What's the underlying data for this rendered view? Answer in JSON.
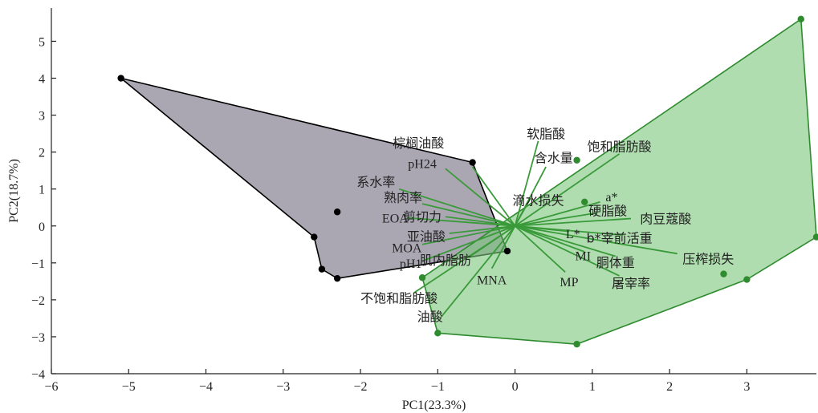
{
  "chart_data": {
    "type": "scatter",
    "title": "",
    "xlabel": "PC1(23.3%)",
    "ylabel": "PC2(18.7%)",
    "xlim": [
      -6,
      3.9
    ],
    "ylim": [
      -4,
      5.9
    ],
    "xticks": [
      -6,
      -5,
      -4,
      -3,
      -2,
      -1,
      0,
      1,
      2,
      3
    ],
    "yticks": [
      -4,
      -3,
      -2,
      -1,
      0,
      1,
      2,
      3,
      4,
      5
    ],
    "xtick_labels": [
      "−6",
      "−5",
      "−4",
      "−3",
      "−2",
      "−1",
      "0",
      "1",
      "2",
      "3"
    ],
    "ytick_labels": [
      "−4",
      "−3",
      "−2",
      "−1",
      "0",
      "1",
      "2",
      "3",
      "4",
      "5"
    ],
    "grid": false,
    "groups": [
      {
        "color": "#000000",
        "fill": "#8e8a99",
        "points": [
          [
            -5.1,
            4.0
          ],
          [
            -0.55,
            1.72
          ],
          [
            -0.1,
            -0.68
          ],
          [
            -2.3,
            -1.42
          ],
          [
            -2.5,
            -1.17
          ],
          [
            -2.6,
            -0.3
          ],
          [
            -2.3,
            0.38
          ]
        ],
        "hull": [
          [
            -5.1,
            4.0
          ],
          [
            -0.55,
            1.72
          ],
          [
            -0.1,
            -0.68
          ],
          [
            -2.3,
            -1.42
          ],
          [
            -2.5,
            -1.17
          ],
          [
            -2.6,
            -0.3
          ]
        ]
      },
      {
        "color": "#2e8b2e",
        "fill": "#7cc67c",
        "points": [
          [
            3.7,
            5.6
          ],
          [
            3.9,
            -0.3
          ],
          [
            3.0,
            -1.45
          ],
          [
            2.7,
            -1.3
          ],
          [
            0.8,
            -3.2
          ],
          [
            -1.0,
            -2.9
          ],
          [
            -1.2,
            -1.4
          ],
          [
            0.9,
            0.65
          ],
          [
            0.8,
            1.78
          ]
        ],
        "hull": [
          [
            3.7,
            5.6
          ],
          [
            3.9,
            -0.3
          ],
          [
            3.0,
            -1.45
          ],
          [
            0.8,
            -3.2
          ],
          [
            -1.0,
            -2.9
          ],
          [
            -1.2,
            -1.4
          ]
        ]
      }
    ],
    "loadings": [
      {
        "label": "棕榈油酸",
        "x": -0.55,
        "y": 1.6,
        "lx": -1.25,
        "ly": 2.25
      },
      {
        "label": "pH24",
        "x": -0.9,
        "y": 1.55,
        "lx": -1.2,
        "ly": 1.7
      },
      {
        "label": "系水率",
        "x": -1.5,
        "y": 1.0,
        "lx": -1.8,
        "ly": 1.2
      },
      {
        "label": "熟肉率",
        "x": -1.2,
        "y": 0.6,
        "lx": -1.45,
        "ly": 0.78
      },
      {
        "label": "EOA",
        "x": -1.4,
        "y": 0.22,
        "lx": -1.55,
        "ly": 0.22
      },
      {
        "label": "剪切力",
        "x": -0.9,
        "y": 0.25,
        "lx": -1.2,
        "ly": 0.25
      },
      {
        "label": "亚油酸",
        "x": -0.85,
        "y": -0.2,
        "lx": -1.15,
        "ly": -0.28
      },
      {
        "label": "MOA",
        "x": -1.2,
        "y": -0.5,
        "lx": -1.4,
        "ly": -0.58
      },
      {
        "label": "pH1",
        "x": -1.2,
        "y": -0.95,
        "lx": -1.35,
        "ly": -1.0
      },
      {
        "label": "肌内脂肪",
        "x": -0.6,
        "y": -0.85,
        "lx": -0.9,
        "ly": -0.92
      },
      {
        "label": "MNA",
        "x": -0.3,
        "y": -1.15,
        "lx": -0.3,
        "ly": -1.45
      },
      {
        "label": "不饱和脂肪酸",
        "x": -1.3,
        "y": -1.8,
        "lx": -1.5,
        "ly": -1.95
      },
      {
        "label": "油酸",
        "x": -0.95,
        "y": -2.45,
        "lx": -1.1,
        "ly": -2.45
      },
      {
        "label": "软脂酸",
        "x": 0.3,
        "y": 2.3,
        "lx": 0.4,
        "ly": 2.5
      },
      {
        "label": "含水量",
        "x": 0.4,
        "y": 1.6,
        "lx": 0.5,
        "ly": 1.85
      },
      {
        "label": "饱和脂肪酸",
        "x": 1.35,
        "y": 1.95,
        "lx": 1.35,
        "ly": 2.15
      },
      {
        "label": "滴水损失",
        "x": 0.2,
        "y": 0.75,
        "lx": 0.3,
        "ly": 0.7
      },
      {
        "label": "a*",
        "x": 1.1,
        "y": 0.65,
        "lx": 1.25,
        "ly": 0.8
      },
      {
        "label": "硬脂酸",
        "x": 1.05,
        "y": 0.35,
        "lx": 1.2,
        "ly": 0.42
      },
      {
        "label": "肉豆蔻酸",
        "x": 1.5,
        "y": 0.2,
        "lx": 1.95,
        "ly": 0.2
      },
      {
        "label": "L*",
        "x": 0.7,
        "y": -0.15,
        "lx": 0.75,
        "ly": -0.2
      },
      {
        "label": "b*宰前活重",
        "x": 1.4,
        "y": -0.25,
        "lx": 1.35,
        "ly": -0.32
      },
      {
        "label": "MI",
        "x": 0.9,
        "y": -0.7,
        "lx": 0.88,
        "ly": -0.8
      },
      {
        "label": "胴体重",
        "x": 1.3,
        "y": -0.82,
        "lx": 1.3,
        "ly": -0.98
      },
      {
        "label": "压榨损失",
        "x": 2.1,
        "y": -0.75,
        "lx": 2.5,
        "ly": -0.88
      },
      {
        "label": "MP",
        "x": 0.65,
        "y": -1.25,
        "lx": 0.7,
        "ly": -1.5
      },
      {
        "label": "屠宰率",
        "x": 1.35,
        "y": -1.35,
        "lx": 1.5,
        "ly": -1.55
      }
    ]
  }
}
